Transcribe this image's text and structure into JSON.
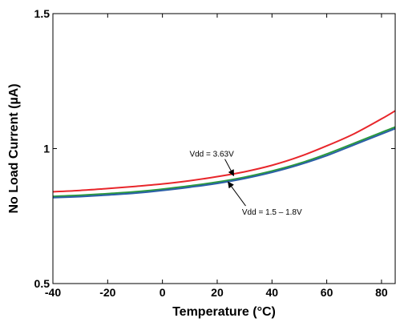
{
  "chart_data": {
    "type": "line",
    "title": "",
    "xlabel": "Temperature (°C)",
    "ylabel": "No Load Current (µA)",
    "xlim": [
      -40,
      85
    ],
    "ylim": [
      0.5,
      1.5
    ],
    "x_ticks": [
      "-40",
      "-20",
      "0",
      "20",
      "40",
      "60",
      "80"
    ],
    "y_ticks": [
      "0.5",
      "1",
      "1.5"
    ],
    "grid": false,
    "legend": "none",
    "series": [
      {
        "color": "#e8262b",
        "x": [
          -40,
          -30,
          -20,
          -10,
          0,
          10,
          20,
          30,
          40,
          50,
          60,
          70,
          80,
          85
        ],
        "y": [
          0.84,
          0.845,
          0.852,
          0.86,
          0.869,
          0.881,
          0.896,
          0.914,
          0.938,
          0.97,
          1.01,
          1.055,
          1.11,
          1.14
        ]
      },
      {
        "color": "#2a9a3c",
        "x": [
          -40,
          -30,
          -20,
          -10,
          0,
          10,
          20,
          30,
          40,
          50,
          60,
          70,
          80,
          85
        ],
        "y": [
          0.823,
          0.827,
          0.833,
          0.84,
          0.85,
          0.862,
          0.876,
          0.894,
          0.917,
          0.945,
          0.98,
          1.02,
          1.06,
          1.08
        ]
      },
      {
        "color": "#2b5fa8",
        "x": [
          -40,
          -30,
          -20,
          -10,
          0,
          10,
          20,
          30,
          40,
          50,
          60,
          70,
          80,
          85
        ],
        "y": [
          0.818,
          0.822,
          0.828,
          0.835,
          0.845,
          0.857,
          0.871,
          0.889,
          0.912,
          0.94,
          0.974,
          1.014,
          1.054,
          1.074
        ]
      }
    ],
    "annotations": [
      {
        "text": "Vdd = 3.63V",
        "text_at": [
          18,
          0.97
        ],
        "arrow_to": [
          26,
          0.9
        ]
      },
      {
        "text": "Vdd = 1.5 – 1.8V",
        "text_at": [
          40,
          0.755
        ],
        "arrow_to": [
          24,
          0.876
        ]
      }
    ]
  }
}
